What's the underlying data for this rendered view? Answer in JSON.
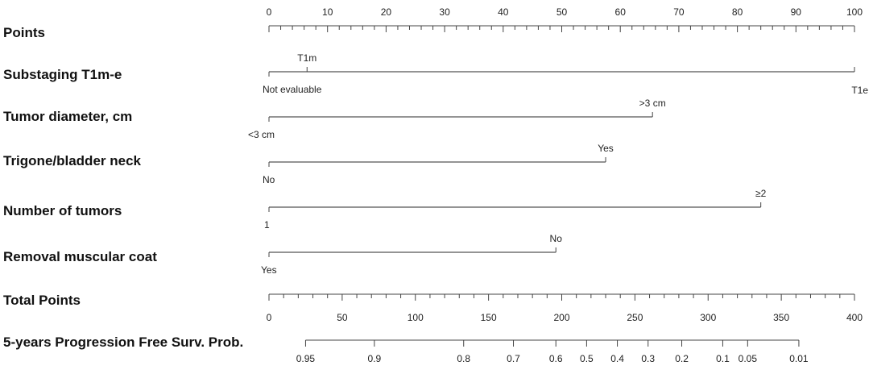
{
  "chart_data": {
    "type": "nomogram",
    "rows": {
      "points": {
        "label": "Points",
        "ticks": [
          0,
          10,
          20,
          30,
          40,
          50,
          60,
          70,
          80,
          90,
          100
        ],
        "range": [
          0,
          100
        ]
      },
      "substaging": {
        "label": "Substaging T1m-e",
        "levels": [
          {
            "name": "Not evaluable",
            "points": 0
          },
          {
            "name": "T1m",
            "points": 6.5
          },
          {
            "name": "T1e",
            "points": 100
          }
        ]
      },
      "tumor_diameter": {
        "label": "Tumor diameter, cm",
        "levels": [
          {
            "name": "<3 cm",
            "points": 0
          },
          {
            "name": ">3 cm",
            "points": 65.5
          }
        ]
      },
      "trigone": {
        "label": "Trigone/bladder neck",
        "levels": [
          {
            "name": "No",
            "points": 0
          },
          {
            "name": "Yes",
            "points": 57.5
          }
        ]
      },
      "number_of_tumors": {
        "label": "Number of tumors",
        "levels": [
          {
            "name": "1",
            "points": 0
          },
          {
            "name": "≥2",
            "points": 84
          }
        ]
      },
      "removal_muscular": {
        "label": "Removal muscular coat",
        "levels": [
          {
            "name": "Yes",
            "points": 0
          },
          {
            "name": "No",
            "points": 49
          }
        ]
      },
      "total_points": {
        "label": "Total Points",
        "ticks": [
          0,
          50,
          100,
          150,
          200,
          250,
          300,
          350,
          400
        ],
        "range": [
          0,
          400
        ]
      },
      "progression": {
        "label": "5-years Progression  Free Surv. Prob.",
        "tick_labels": [
          "0.95",
          "0.9",
          "0.8",
          "0.7",
          "0.6",
          "0.5",
          "0.4",
          "0.3",
          "0.2",
          "0.1",
          "0.05",
          "0.01"
        ],
        "tick_total_points": [
          25,
          72,
          133,
          167,
          196,
          217,
          238,
          259,
          282,
          310,
          327,
          362
        ]
      }
    }
  }
}
